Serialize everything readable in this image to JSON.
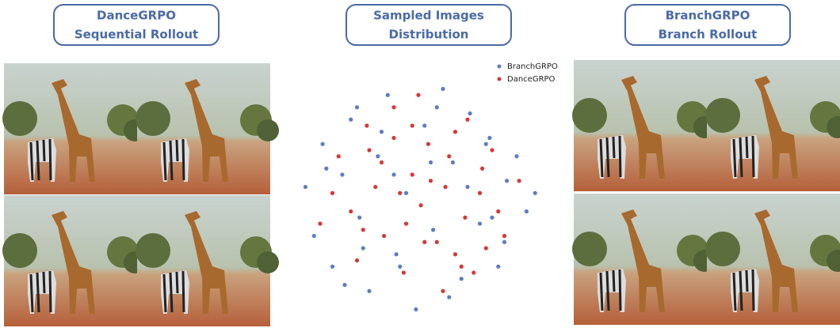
{
  "left_panel": {
    "title_lines": [
      "DanceGRPO",
      "Sequential Rollout"
    ]
  },
  "right_panel": {
    "title_lines": [
      "BranchGRPO",
      "Branch Rollout"
    ]
  },
  "chart_data": {
    "type": "scatter",
    "title_lines": [
      "Sampled Images",
      "Distribution"
    ],
    "xlim": [
      -1,
      1
    ],
    "ylim": [
      -1,
      1
    ],
    "legend": "top-right",
    "series": [
      {
        "name": "BranchGRPO",
        "color": "#5b7fc0",
        "x": [
          -0.92,
          -0.85,
          -0.78,
          -0.7,
          -0.62,
          -0.55,
          -0.48,
          -0.4,
          -0.33,
          -0.25,
          -0.18,
          -0.1,
          -0.02,
          0.05,
          0.12,
          0.2,
          0.28,
          0.35,
          0.42,
          0.5,
          0.58,
          0.65,
          0.72,
          0.8,
          0.88,
          0.95,
          -0.6,
          -0.3,
          0.1,
          0.4,
          0.7,
          -0.75,
          -0.45,
          -0.15,
          0.25,
          0.55,
          0.15,
          -0.5,
          0.6,
          -0.2
        ],
        "values": [
          0.1,
          -0.3,
          0.45,
          -0.55,
          0.2,
          0.65,
          -0.15,
          -0.75,
          0.35,
          0.85,
          -0.45,
          0.05,
          -0.9,
          0.6,
          -0.25,
          0.9,
          0.3,
          -0.65,
          0.7,
          -0.2,
          0.5,
          -0.55,
          0.15,
          0.35,
          -0.1,
          0.05,
          -0.7,
          0.55,
          0.3,
          0.1,
          -0.35,
          0.25,
          -0.4,
          -0.55,
          -0.8,
          0.45,
          0.75,
          0.75,
          -0.15,
          0.2
        ]
      },
      {
        "name": "DanceGRPO",
        "color": "#d63838",
        "x": [
          -0.8,
          -0.65,
          -0.5,
          -0.42,
          -0.35,
          -0.28,
          -0.2,
          -0.12,
          -0.05,
          0.02,
          0.08,
          0.15,
          0.22,
          0.3,
          0.38,
          0.45,
          0.52,
          0.6,
          0.7,
          0.82,
          -0.55,
          -0.3,
          -0.1,
          0.1,
          0.3,
          0.5,
          -0.4,
          0,
          0.2,
          -0.2,
          0.4,
          -0.7,
          0.65,
          0.05,
          -0.15,
          0.35,
          -0.45,
          0.25,
          -0.05,
          0.55
        ],
        "values": [
          -0.2,
          0.35,
          -0.5,
          0.6,
          0.1,
          -0.3,
          0.75,
          -0.6,
          0.2,
          -0.05,
          0.45,
          -0.35,
          0.1,
          0.55,
          -0.15,
          -0.6,
          0.25,
          0.4,
          -0.3,
          0.15,
          -0.1,
          0.3,
          -0.2,
          0.15,
          -0.45,
          0.05,
          0.4,
          0.85,
          -0.75,
          0.5,
          0.65,
          0.05,
          -0.1,
          -0.35,
          0.05,
          -0.55,
          -0.25,
          0.35,
          0.6,
          -0.4
        ]
      }
    ]
  }
}
